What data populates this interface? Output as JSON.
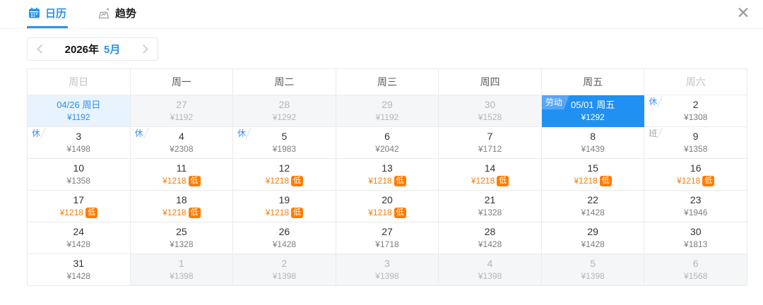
{
  "tabs": {
    "calendar": {
      "label": "日历",
      "active": true
    },
    "trend": {
      "label": "趋势",
      "active": false
    }
  },
  "close": {
    "icon": "✕"
  },
  "month_nav": {
    "year": "2026年",
    "month": "5月"
  },
  "calendar": {
    "weekdays": [
      "周日",
      "周一",
      "周二",
      "周三",
      "周四",
      "周五",
      "周六"
    ],
    "low_badge_label": "低",
    "cells": [
      {
        "day": "04/26 周日",
        "price": "¥1192",
        "variant": "range-start"
      },
      {
        "day": "27",
        "price": "¥1192",
        "variant": "adjacent"
      },
      {
        "day": "28",
        "price": "¥1292",
        "variant": "adjacent"
      },
      {
        "day": "29",
        "price": "¥1192",
        "variant": "adjacent"
      },
      {
        "day": "30",
        "price": "¥1528",
        "variant": "adjacent"
      },
      {
        "day": "05/01 周五",
        "price": "¥1292",
        "variant": "selected",
        "corner": "劳动",
        "corner_type": "holiday"
      },
      {
        "day": "2",
        "price": "¥1308",
        "corner": "休",
        "corner_type": "rest"
      },
      {
        "day": "3",
        "price": "¥1498",
        "corner": "休",
        "corner_type": "rest"
      },
      {
        "day": "4",
        "price": "¥2308",
        "corner": "休",
        "corner_type": "rest"
      },
      {
        "day": "5",
        "price": "¥1983",
        "corner": "休",
        "corner_type": "rest"
      },
      {
        "day": "6",
        "price": "¥2042"
      },
      {
        "day": "7",
        "price": "¥1712"
      },
      {
        "day": "8",
        "price": "¥1439"
      },
      {
        "day": "9",
        "price": "¥1358",
        "corner": "班",
        "corner_type": "work"
      },
      {
        "day": "10",
        "price": "¥1358"
      },
      {
        "day": "11",
        "price": "¥1218",
        "low": true
      },
      {
        "day": "12",
        "price": "¥1218",
        "low": true
      },
      {
        "day": "13",
        "price": "¥1218",
        "low": true
      },
      {
        "day": "14",
        "price": "¥1218",
        "low": true
      },
      {
        "day": "15",
        "price": "¥1218",
        "low": true
      },
      {
        "day": "16",
        "price": "¥1218",
        "low": true
      },
      {
        "day": "17",
        "price": "¥1218",
        "low": true
      },
      {
        "day": "18",
        "price": "¥1218",
        "low": true
      },
      {
        "day": "19",
        "price": "¥1218",
        "low": true
      },
      {
        "day": "20",
        "price": "¥1218",
        "low": true
      },
      {
        "day": "21",
        "price": "¥1328"
      },
      {
        "day": "22",
        "price": "¥1428"
      },
      {
        "day": "23",
        "price": "¥1946"
      },
      {
        "day": "24",
        "price": "¥1428"
      },
      {
        "day": "25",
        "price": "¥1328"
      },
      {
        "day": "26",
        "price": "¥1428"
      },
      {
        "day": "27",
        "price": "¥1718"
      },
      {
        "day": "28",
        "price": "¥1428"
      },
      {
        "day": "29",
        "price": "¥1428"
      },
      {
        "day": "30",
        "price": "¥1813"
      },
      {
        "day": "31",
        "price": "¥1428"
      },
      {
        "day": "1",
        "price": "¥1398",
        "variant": "adjacent"
      },
      {
        "day": "2",
        "price": "¥1398",
        "variant": "adjacent"
      },
      {
        "day": "3",
        "price": "¥1398",
        "variant": "adjacent"
      },
      {
        "day": "4",
        "price": "¥1398",
        "variant": "adjacent"
      },
      {
        "day": "5",
        "price": "¥1398",
        "variant": "adjacent"
      },
      {
        "day": "6",
        "price": "¥1568",
        "variant": "adjacent"
      }
    ]
  },
  "colors": {
    "accent": "#2692f4",
    "selected_bg": "#2190f3",
    "holiday_badge_bg": "#58a6f6",
    "range_start_bg": "#e9f3fd",
    "low_price": "#ff7c00",
    "adjacent_bg": "#f5f6f7",
    "grid_border": "#ebebeb"
  }
}
